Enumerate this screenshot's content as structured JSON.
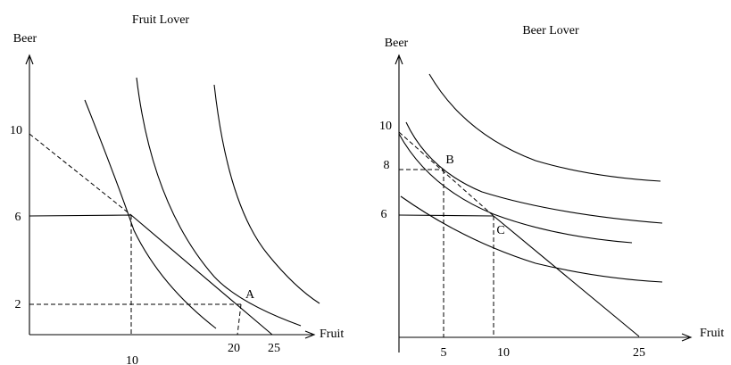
{
  "panels": [
    {
      "title": "Fruit Lover",
      "y_label": "Beer",
      "x_label": "Fruit",
      "y_ticks": [
        "10",
        "6",
        "2"
      ],
      "x_ticks": [
        "10",
        "20",
        "25"
      ],
      "points": [
        "A"
      ]
    },
    {
      "title": "Beer Lover",
      "y_label": "Beer",
      "x_label": "Fruit",
      "y_ticks": [
        "10",
        "8",
        "6"
      ],
      "x_ticks": [
        "5",
        "10",
        "25"
      ],
      "points": [
        "B",
        "C"
      ]
    }
  ]
}
